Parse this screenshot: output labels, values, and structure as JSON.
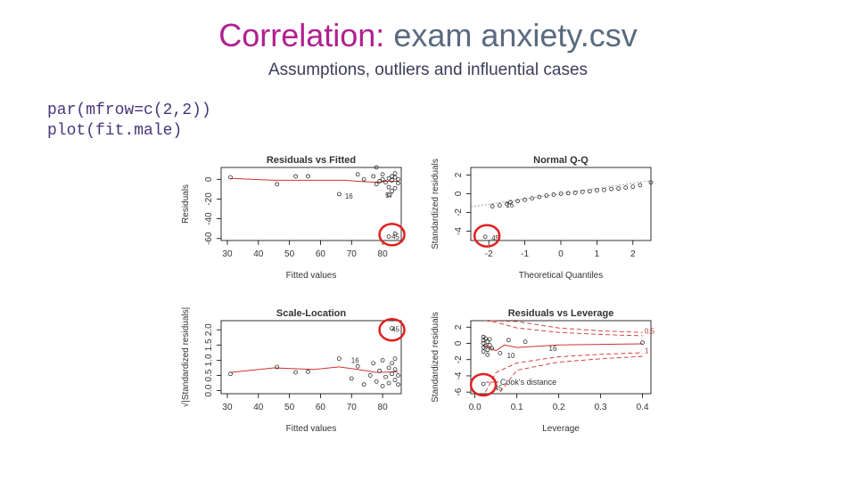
{
  "header": {
    "title_accent": "Correlation:",
    "title_rest": "exam anxiety.csv",
    "subtitle": "Assumptions, outliers and influential cases"
  },
  "code": [
    "par(mfrow=c(2,2))",
    "plot(fit.male)"
  ],
  "colors": {
    "accent": "#b0208f",
    "title_gray": "#5a6a7f",
    "code": "#47367a",
    "highlight": "#e02020",
    "fit_line": "#cc3333"
  },
  "chart_data": [
    {
      "type": "scatter",
      "title": "Residuals vs Fitted",
      "xlabel": "Fitted values",
      "ylabel": "Residuals",
      "xlim": [
        28,
        86
      ],
      "ylim": [
        -62,
        12
      ],
      "xticks": [
        30,
        40,
        50,
        60,
        70,
        80
      ],
      "yticks": [
        {
          "v": -60,
          "t": "-60"
        },
        {
          "v": -40,
          "t": "-40"
        },
        {
          "v": -20,
          "t": "-20"
        },
        {
          "v": 0,
          "t": "0"
        }
      ],
      "points": [
        [
          31,
          2
        ],
        [
          46,
          -5
        ],
        [
          52,
          3
        ],
        [
          56,
          3
        ],
        [
          66,
          -15
        ],
        [
          72,
          5
        ],
        [
          74,
          0
        ],
        [
          77,
          3
        ],
        [
          78,
          -5
        ],
        [
          78,
          12
        ],
        [
          79,
          -2
        ],
        [
          80,
          5
        ],
        [
          80,
          0
        ],
        [
          81,
          -3
        ],
        [
          82,
          1
        ],
        [
          82,
          -8
        ],
        [
          83,
          3
        ],
        [
          83,
          -1
        ],
        [
          84,
          6
        ],
        [
          84,
          2
        ],
        [
          85,
          0
        ],
        [
          85,
          -4
        ],
        [
          84,
          -9
        ],
        [
          83,
          -12
        ],
        [
          82,
          -16
        ],
        [
          84,
          -55
        ],
        [
          82,
          -58
        ]
      ],
      "trend": [
        [
          31,
          1
        ],
        [
          45,
          -1
        ],
        [
          60,
          -1
        ],
        [
          68,
          -1
        ],
        [
          72,
          -2
        ],
        [
          78,
          -3
        ],
        [
          82,
          -2
        ],
        [
          85,
          -2
        ]
      ],
      "point_labels": [
        {
          "x": 67,
          "y": -17,
          "t": "16"
        },
        {
          "x": 80,
          "y": -16,
          "t": "57"
        },
        {
          "x": 82,
          "y": -58,
          "t": "45"
        }
      ],
      "highlight": {
        "x": 83,
        "y": -56
      }
    },
    {
      "type": "scatter",
      "title": "Normal Q-Q",
      "xlabel": "Theoretical Quantiles",
      "ylabel": "Standardized residuals",
      "xlim": [
        -2.5,
        2.5
      ],
      "ylim": [
        -5,
        2.8
      ],
      "xticks": [
        {
          "v": -2,
          "t": "-2"
        },
        {
          "v": -1,
          "t": "-1"
        },
        {
          "v": 0,
          "t": "0"
        },
        {
          "v": 1,
          "t": "1"
        },
        {
          "v": 2,
          "t": "2"
        }
      ],
      "yticks": [
        {
          "v": -4,
          "t": "-4"
        },
        {
          "v": -2,
          "t": "-2"
        },
        {
          "v": 0,
          "t": "0"
        },
        {
          "v": 2,
          "t": "2"
        }
      ],
      "points": [
        [
          -2.1,
          -4.6
        ],
        [
          -1.9,
          -1.35
        ],
        [
          -1.7,
          -1.25
        ],
        [
          -1.5,
          -1.1
        ],
        [
          -1.4,
          -0.9
        ],
        [
          -1.2,
          -0.8
        ],
        [
          -1.0,
          -0.65
        ],
        [
          -0.8,
          -0.5
        ],
        [
          -0.6,
          -0.35
        ],
        [
          -0.4,
          -0.2
        ],
        [
          -0.2,
          -0.1
        ],
        [
          0,
          0
        ],
        [
          0.2,
          0.05
        ],
        [
          0.4,
          0.1
        ],
        [
          0.6,
          0.2
        ],
        [
          0.8,
          0.25
        ],
        [
          1.0,
          0.35
        ],
        [
          1.2,
          0.4
        ],
        [
          1.4,
          0.5
        ],
        [
          1.6,
          0.55
        ],
        [
          1.8,
          0.65
        ],
        [
          2.0,
          0.75
        ],
        [
          2.2,
          0.9
        ],
        [
          2.5,
          1.2
        ]
      ],
      "ref_line": [
        [
          -2.5,
          -1.4
        ],
        [
          2.5,
          1.4
        ]
      ],
      "point_labels": [
        {
          "x": -1.6,
          "y": -1.2,
          "t": "16"
        },
        {
          "x": -2.0,
          "y": -4.7,
          "t": "45"
        }
      ],
      "highlight": {
        "x": -2.05,
        "y": -4.5
      }
    },
    {
      "type": "scatter",
      "title": "Scale-Location",
      "xlabel": "Fitted values",
      "ylabel": "√|Standardized residuals|",
      "xlim": [
        28,
        86
      ],
      "ylim": [
        -0.1,
        2.3
      ],
      "xticks": [
        30,
        40,
        50,
        60,
        70,
        80
      ],
      "yticks": [
        {
          "v": 0,
          "t": "0.0"
        },
        {
          "v": 0.5,
          "t": "0.5"
        },
        {
          "v": 1.0,
          "t": "1.0"
        },
        {
          "v": 1.5,
          "t": "1.5"
        },
        {
          "v": 2.0,
          "t": "2.0"
        }
      ],
      "points": [
        [
          31,
          0.55
        ],
        [
          46,
          0.78
        ],
        [
          52,
          0.6
        ],
        [
          56,
          0.62
        ],
        [
          66,
          1.05
        ],
        [
          70,
          0.4
        ],
        [
          72,
          0.8
        ],
        [
          74,
          0.2
        ],
        [
          76,
          0.5
        ],
        [
          77,
          0.9
        ],
        [
          78,
          0.3
        ],
        [
          79,
          0.65
        ],
        [
          80,
          1.0
        ],
        [
          80,
          0.15
        ],
        [
          81,
          0.45
        ],
        [
          82,
          0.75
        ],
        [
          82,
          0.25
        ],
        [
          83,
          0.55
        ],
        [
          83,
          0.9
        ],
        [
          84,
          0.35
        ],
        [
          84,
          0.7
        ],
        [
          85,
          0.2
        ],
        [
          85,
          0.5
        ],
        [
          84,
          1.05
        ],
        [
          83,
          2.05
        ]
      ],
      "trend": [
        [
          31,
          0.6
        ],
        [
          45,
          0.75
        ],
        [
          58,
          0.7
        ],
        [
          66,
          0.78
        ],
        [
          72,
          0.7
        ],
        [
          78,
          0.6
        ],
        [
          85,
          0.62
        ]
      ],
      "point_labels": [
        {
          "x": 69,
          "y": 1.0,
          "t": "16"
        },
        {
          "x": 82,
          "y": 2.02,
          "t": "45"
        }
      ],
      "highlight": {
        "x": 83,
        "y": 2.0
      }
    },
    {
      "type": "scatter",
      "title": "Residuals vs Leverage",
      "xlabel": "Leverage",
      "ylabel": "Standardized residuals",
      "xlim": [
        -0.01,
        0.42
      ],
      "ylim": [
        -6.2,
        2.8
      ],
      "xticks": [
        {
          "v": 0,
          "t": "0.0"
        },
        {
          "v": 0.1,
          "t": "0.1"
        },
        {
          "v": 0.2,
          "t": "0.2"
        },
        {
          "v": 0.3,
          "t": "0.3"
        },
        {
          "v": 0.4,
          "t": "0.4"
        }
      ],
      "yticks": [
        {
          "v": -6,
          "t": "-6"
        },
        {
          "v": -4,
          "t": "-4"
        },
        {
          "v": -2,
          "t": "-2"
        },
        {
          "v": 0,
          "t": "0"
        },
        {
          "v": 2,
          "t": "2"
        }
      ],
      "points": [
        [
          0.02,
          0.8
        ],
        [
          0.02,
          0.4
        ],
        [
          0.02,
          0
        ],
        [
          0.02,
          -0.5
        ],
        [
          0.02,
          -1.0
        ],
        [
          0.025,
          0.6
        ],
        [
          0.025,
          -0.3
        ],
        [
          0.03,
          0.2
        ],
        [
          0.03,
          -0.8
        ],
        [
          0.035,
          0.5
        ],
        [
          0.035,
          -0.2
        ],
        [
          0.03,
          -1.4
        ],
        [
          0.04,
          -0.6
        ],
        [
          0.06,
          -1.2
        ],
        [
          0.08,
          0.4
        ],
        [
          0.12,
          0.2
        ],
        [
          0.02,
          -5.0
        ],
        [
          0.4,
          0.1
        ]
      ],
      "trend": [
        [
          0.02,
          -0.2
        ],
        [
          0.05,
          -0.9
        ],
        [
          0.07,
          -0.2
        ],
        [
          0.1,
          -0.5
        ],
        [
          0.2,
          -0.2
        ],
        [
          0.4,
          -0.05
        ]
      ],
      "cook_upper": [
        [
          0.025,
          2.8
        ],
        [
          0.05,
          2.6
        ],
        [
          0.1,
          1.9
        ],
        [
          0.2,
          1.35
        ],
        [
          0.3,
          1.1
        ],
        [
          0.4,
          0.95
        ]
      ],
      "cook_upper_outer": [
        [
          0.04,
          2.8
        ],
        [
          0.1,
          2.7
        ],
        [
          0.2,
          1.9
        ],
        [
          0.3,
          1.55
        ],
        [
          0.4,
          1.35
        ]
      ],
      "cook_lower": [
        [
          0.025,
          -6
        ],
        [
          0.05,
          -3.6
        ],
        [
          0.1,
          -2.4
        ],
        [
          0.2,
          -1.65
        ],
        [
          0.3,
          -1.35
        ],
        [
          0.4,
          -1.15
        ]
      ],
      "cook_lower_outer": [
        [
          0.06,
          -6
        ],
        [
          0.1,
          -3.3
        ],
        [
          0.2,
          -2.3
        ],
        [
          0.3,
          -1.9
        ],
        [
          0.4,
          -1.6
        ]
      ],
      "contour_labels": [
        {
          "x": 0.405,
          "y": 1.2,
          "t": "0.5"
        },
        {
          "x": 0.405,
          "y": -1.2,
          "t": "1"
        }
      ],
      "legend": {
        "x": 0.06,
        "y": -5.1,
        "t": "Cook's distance"
      },
      "point_labels": [
        {
          "x": 0.17,
          "y": -0.6,
          "t": "16"
        },
        {
          "x": 0.07,
          "y": -1.5,
          "t": "10"
        },
        {
          "x": 0.04,
          "y": -5.5,
          "t": "45"
        }
      ],
      "highlight": {
        "x": 0.02,
        "y": -5.1
      }
    }
  ]
}
